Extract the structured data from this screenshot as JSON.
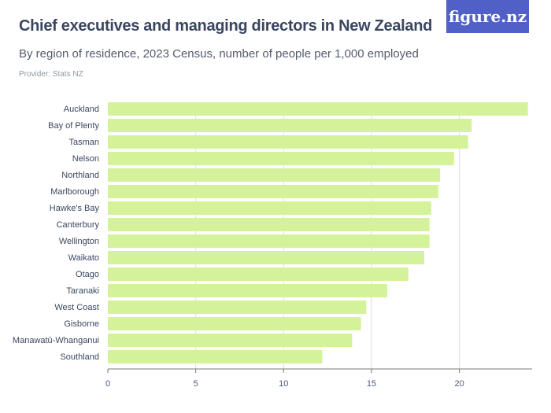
{
  "header": {
    "title": "Chief executives and managing directors in New Zealand",
    "subtitle": "By region of residence, 2023 Census, number of people per 1,000 employed",
    "provider": "Provider: Stats NZ",
    "logo": "figure.nz"
  },
  "colors": {
    "bar": "#d4f29a",
    "logo_bg": "#5060c6",
    "grid": "#dddddd"
  },
  "chart_data": {
    "type": "bar",
    "orientation": "horizontal",
    "title": "Chief executives and managing directors in New Zealand",
    "subtitle": "By region of residence, 2023 Census, number of people per 1,000 employed",
    "categories": [
      "Auckland",
      "Bay of Plenty",
      "Tasman",
      "Nelson",
      "Northland",
      "Marlborough",
      "Hawke's Bay",
      "Canterbury",
      "Wellington",
      "Waikato",
      "Otago",
      "Taranaki",
      "West Coast",
      "Gisborne",
      "Manawatū-Whanganui",
      "Southland"
    ],
    "values": [
      23.9,
      20.7,
      20.5,
      19.7,
      18.9,
      18.8,
      18.4,
      18.3,
      18.3,
      18.0,
      17.1,
      15.9,
      14.7,
      14.4,
      13.9,
      12.2
    ],
    "xlim": [
      0,
      24
    ],
    "ticks": [
      0,
      5,
      10,
      15,
      20
    ],
    "grid": true
  }
}
